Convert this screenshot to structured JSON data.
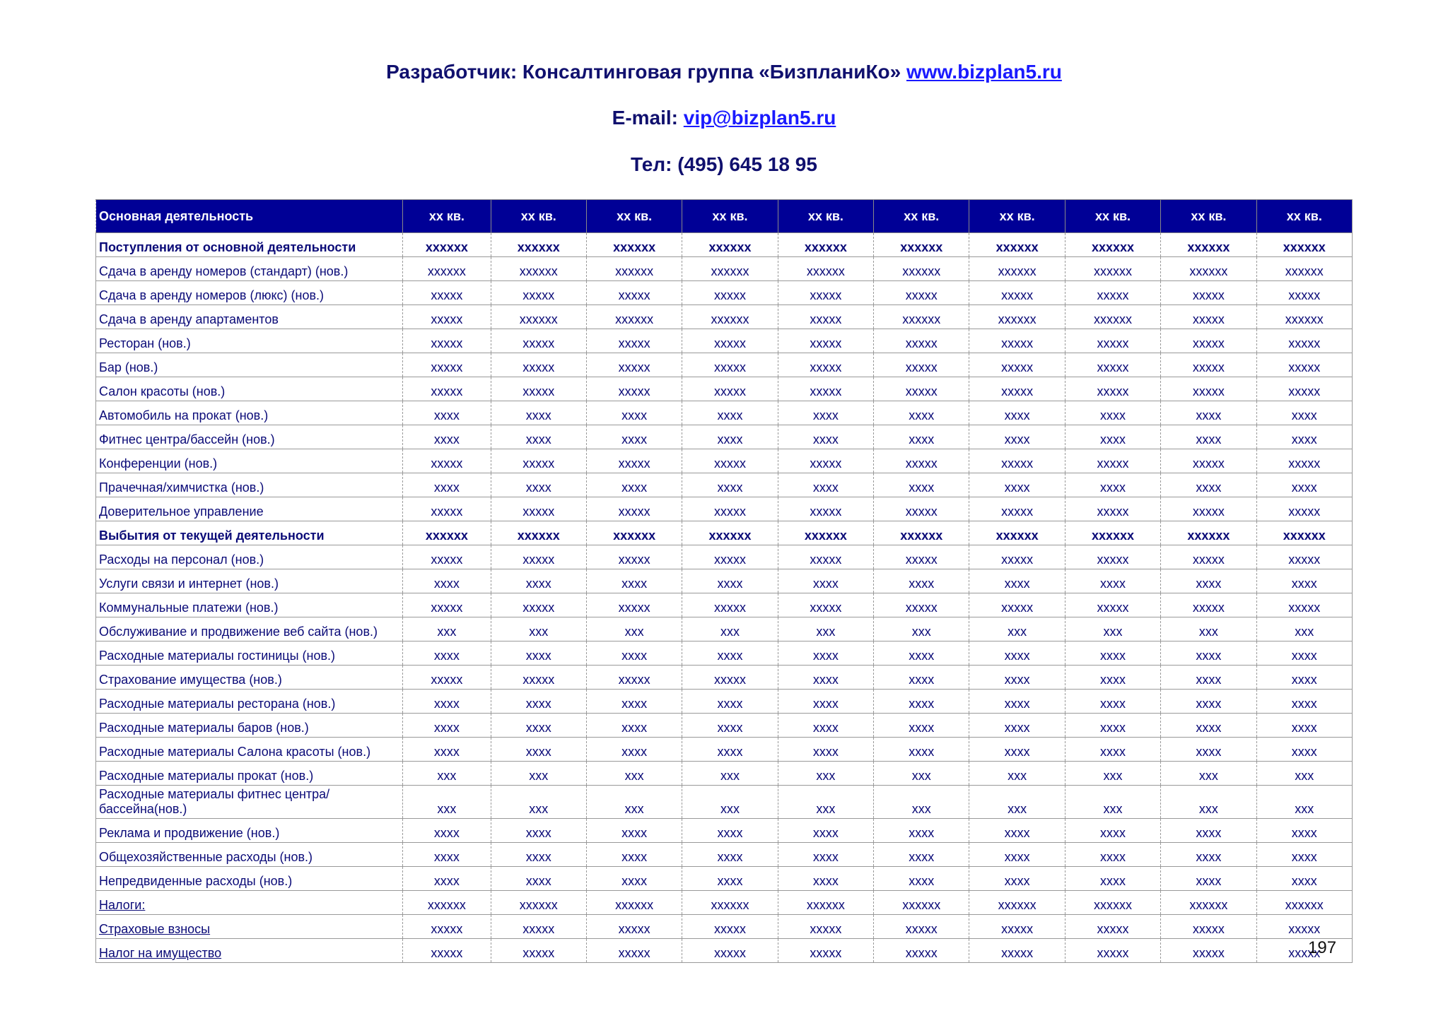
{
  "header": {
    "developer": "Разработчик: Консалтинговая группа «БизпланиКо»",
    "site": "www.bizplan5.ru",
    "email_label": "E-mail:",
    "email": "vip@bizplan5.ru",
    "phone": "Тел: (495) 645 18 95"
  },
  "table": {
    "columns": [
      "Основная деятельность",
      "xx кв.",
      "xx кв.",
      "xx кв.",
      "xx кв.",
      "xx кв.",
      "xx кв.",
      "xx кв.",
      "xx кв.",
      "xx кв.",
      "xx кв."
    ],
    "rows": [
      {
        "style": "bold",
        "cells": [
          "Поступления от основной деятельности",
          "xxxxxx",
          "xxxxxx",
          "xxxxxx",
          "xxxxxx",
          "xxxxxx",
          "xxxxxx",
          "xxxxxx",
          "xxxxxx",
          "xxxxxx",
          "xxxxxx"
        ]
      },
      {
        "cells": [
          "Сдача в аренду номеров (стандарт) (нов.)",
          "xxxxxx",
          "xxxxxx",
          "xxxxxx",
          "xxxxxx",
          "xxxxxx",
          "xxxxxx",
          "xxxxxx",
          "xxxxxx",
          "xxxxxx",
          "xxxxxx"
        ]
      },
      {
        "cells": [
          "Сдача в аренду номеров (люкс) (нов.)",
          "xxxxx",
          "xxxxx",
          "xxxxx",
          "xxxxx",
          "xxxxx",
          "xxxxx",
          "xxxxx",
          "xxxxx",
          "xxxxx",
          "xxxxx"
        ]
      },
      {
        "cells": [
          "Сдача в аренду апартаментов",
          "xxxxx",
          "xxxxxx",
          "xxxxxx",
          "xxxxxx",
          "xxxxx",
          "xxxxxx",
          "xxxxxx",
          "xxxxxx",
          "xxxxx",
          "xxxxxx"
        ]
      },
      {
        "cells": [
          "Ресторан (нов.)",
          "xxxxx",
          "xxxxx",
          "xxxxx",
          "xxxxx",
          "xxxxx",
          "xxxxx",
          "xxxxx",
          "xxxxx",
          "xxxxx",
          "xxxxx"
        ]
      },
      {
        "cells": [
          "Бар (нов.)",
          "xxxxx",
          "xxxxx",
          "xxxxx",
          "xxxxx",
          "xxxxx",
          "xxxxx",
          "xxxxx",
          "xxxxx",
          "xxxxx",
          "xxxxx"
        ]
      },
      {
        "cells": [
          "Салон красоты (нов.)",
          "xxxxx",
          "xxxxx",
          "xxxxx",
          "xxxxx",
          "xxxxx",
          "xxxxx",
          "xxxxx",
          "xxxxx",
          "xxxxx",
          "xxxxx"
        ]
      },
      {
        "cells": [
          "Автомобиль на прокат (нов.)",
          "xxxx",
          "xxxx",
          "xxxx",
          "xxxx",
          "xxxx",
          "xxxx",
          "xxxx",
          "xxxx",
          "xxxx",
          "xxxx"
        ]
      },
      {
        "cells": [
          "Фитнес центра/бассейн (нов.)",
          "xxxx",
          "xxxx",
          "xxxx",
          "xxxx",
          "xxxx",
          "xxxx",
          "xxxx",
          "xxxx",
          "xxxx",
          "xxxx"
        ]
      },
      {
        "cells": [
          "Конференции (нов.)",
          "xxxxx",
          "xxxxx",
          "xxxxx",
          "xxxxx",
          "xxxxx",
          "xxxxx",
          "xxxxx",
          "xxxxx",
          "xxxxx",
          "xxxxx"
        ]
      },
      {
        "cells": [
          "Прачечная/химчистка (нов.)",
          "xxxx",
          "xxxx",
          "xxxx",
          "xxxx",
          "xxxx",
          "xxxx",
          "xxxx",
          "xxxx",
          "xxxx",
          "xxxx"
        ]
      },
      {
        "cells": [
          "Доверительное управление",
          "xxxxx",
          "xxxxx",
          "xxxxx",
          "xxxxx",
          "xxxxx",
          "xxxxx",
          "xxxxx",
          "xxxxx",
          "xxxxx",
          "xxxxx"
        ]
      },
      {
        "style": "bold",
        "cells": [
          "Выбытия от текущей деятельности",
          "xxxxxx",
          "xxxxxx",
          "xxxxxx",
          "xxxxxx",
          "xxxxxx",
          "xxxxxx",
          "xxxxxx",
          "xxxxxx",
          "xxxxxx",
          "xxxxxx"
        ]
      },
      {
        "cells": [
          "Расходы на персонал (нов.)",
          "xxxxx",
          "xxxxx",
          "xxxxx",
          "xxxxx",
          "xxxxx",
          "xxxxx",
          "xxxxx",
          "xxxxx",
          "xxxxx",
          "xxxxx"
        ]
      },
      {
        "cells": [
          "Услуги связи и интернет (нов.)",
          "xxxx",
          "xxxx",
          "xxxx",
          "xxxx",
          "xxxx",
          "xxxx",
          "xxxx",
          "xxxx",
          "xxxx",
          "xxxx"
        ]
      },
      {
        "cells": [
          "Коммунальные платежи (нов.)",
          "xxxxx",
          "xxxxx",
          "xxxxx",
          "xxxxx",
          "xxxxx",
          "xxxxx",
          "xxxxx",
          "xxxxx",
          "xxxxx",
          "xxxxx"
        ]
      },
      {
        "cells": [
          "Обслуживание и продвижение веб сайта (нов.)",
          "xxx",
          "xxx",
          "xxx",
          "xxx",
          "xxx",
          "xxx",
          "xxx",
          "xxx",
          "xxx",
          "xxx"
        ]
      },
      {
        "cells": [
          "Расходные материалы гостиницы (нов.)",
          "xxxx",
          "xxxx",
          "xxxx",
          "xxxx",
          "xxxx",
          "xxxx",
          "xxxx",
          "xxxx",
          "xxxx",
          "xxxx"
        ]
      },
      {
        "cells": [
          "Страхование имущества (нов.)",
          "xxxxx",
          "xxxxx",
          "xxxxx",
          "xxxxx",
          "xxxx",
          "xxxx",
          "xxxx",
          "xxxx",
          "xxxx",
          "xxxx"
        ]
      },
      {
        "cells": [
          "Расходные материалы ресторана (нов.)",
          "xxxx",
          "xxxx",
          "xxxx",
          "xxxx",
          "xxxx",
          "xxxx",
          "xxxx",
          "xxxx",
          "xxxx",
          "xxxx"
        ]
      },
      {
        "cells": [
          "Расходные материалы баров (нов.)",
          "xxxx",
          "xxxx",
          "xxxx",
          "xxxx",
          "xxxx",
          "xxxx",
          "xxxx",
          "xxxx",
          "xxxx",
          "xxxx"
        ]
      },
      {
        "cells": [
          "Расходные материалы Салона красоты (нов.)",
          "xxxx",
          "xxxx",
          "xxxx",
          "xxxx",
          "xxxx",
          "xxxx",
          "xxxx",
          "xxxx",
          "xxxx",
          "xxxx"
        ]
      },
      {
        "cells": [
          "Расходные материалы прокат (нов.)",
          "xxx",
          "xxx",
          "xxx",
          "xxx",
          "xxx",
          "xxx",
          "xxx",
          "xxx",
          "xxx",
          "xxx"
        ]
      },
      {
        "style": "tall",
        "cells": [
          "Расходные материалы фитнес центра/бассейна(нов.)",
          "xxx",
          "xxx",
          "xxx",
          "xxx",
          "xxx",
          "xxx",
          "xxx",
          "xxx",
          "xxx",
          "xxx"
        ]
      },
      {
        "cells": [
          "Реклама и продвижение (нов.)",
          "xxxx",
          "xxxx",
          "xxxx",
          "xxxx",
          "xxxx",
          "xxxx",
          "xxxx",
          "xxxx",
          "xxxx",
          "xxxx"
        ]
      },
      {
        "cells": [
          "Общехозяйственные расходы (нов.)",
          "xxxx",
          "xxxx",
          "xxxx",
          "xxxx",
          "xxxx",
          "xxxx",
          "xxxx",
          "xxxx",
          "xxxx",
          "xxxx"
        ]
      },
      {
        "cells": [
          "Непредвиденные расходы (нов.)",
          "xxxx",
          "xxxx",
          "xxxx",
          "xxxx",
          "xxxx",
          "xxxx",
          "xxxx",
          "xxxx",
          "xxxx",
          "xxxx"
        ]
      },
      {
        "style": "underline",
        "cells": [
          "Налоги:",
          "xxxxxx",
          "xxxxxx",
          "xxxxxx",
          "xxxxxx",
          "xxxxxx",
          "xxxxxx",
          "xxxxxx",
          "xxxxxx",
          "xxxxxx",
          "xxxxxx"
        ]
      },
      {
        "style": "underline",
        "cells": [
          "Страховые взносы",
          "xxxxx",
          "xxxxx",
          "xxxxx",
          "xxxxx",
          "xxxxx",
          "xxxxx",
          "xxxxx",
          "xxxxx",
          "xxxxx",
          "xxxxx"
        ]
      },
      {
        "style": "underline",
        "cells": [
          "Налог на имущество",
          "xxxxx",
          "xxxxx",
          "xxxxx",
          "xxxxx",
          "xxxxx",
          "xxxxx",
          "xxxxx",
          "xxxxx",
          "xxxxx",
          "xxxxx"
        ]
      }
    ]
  },
  "page_number": "197"
}
